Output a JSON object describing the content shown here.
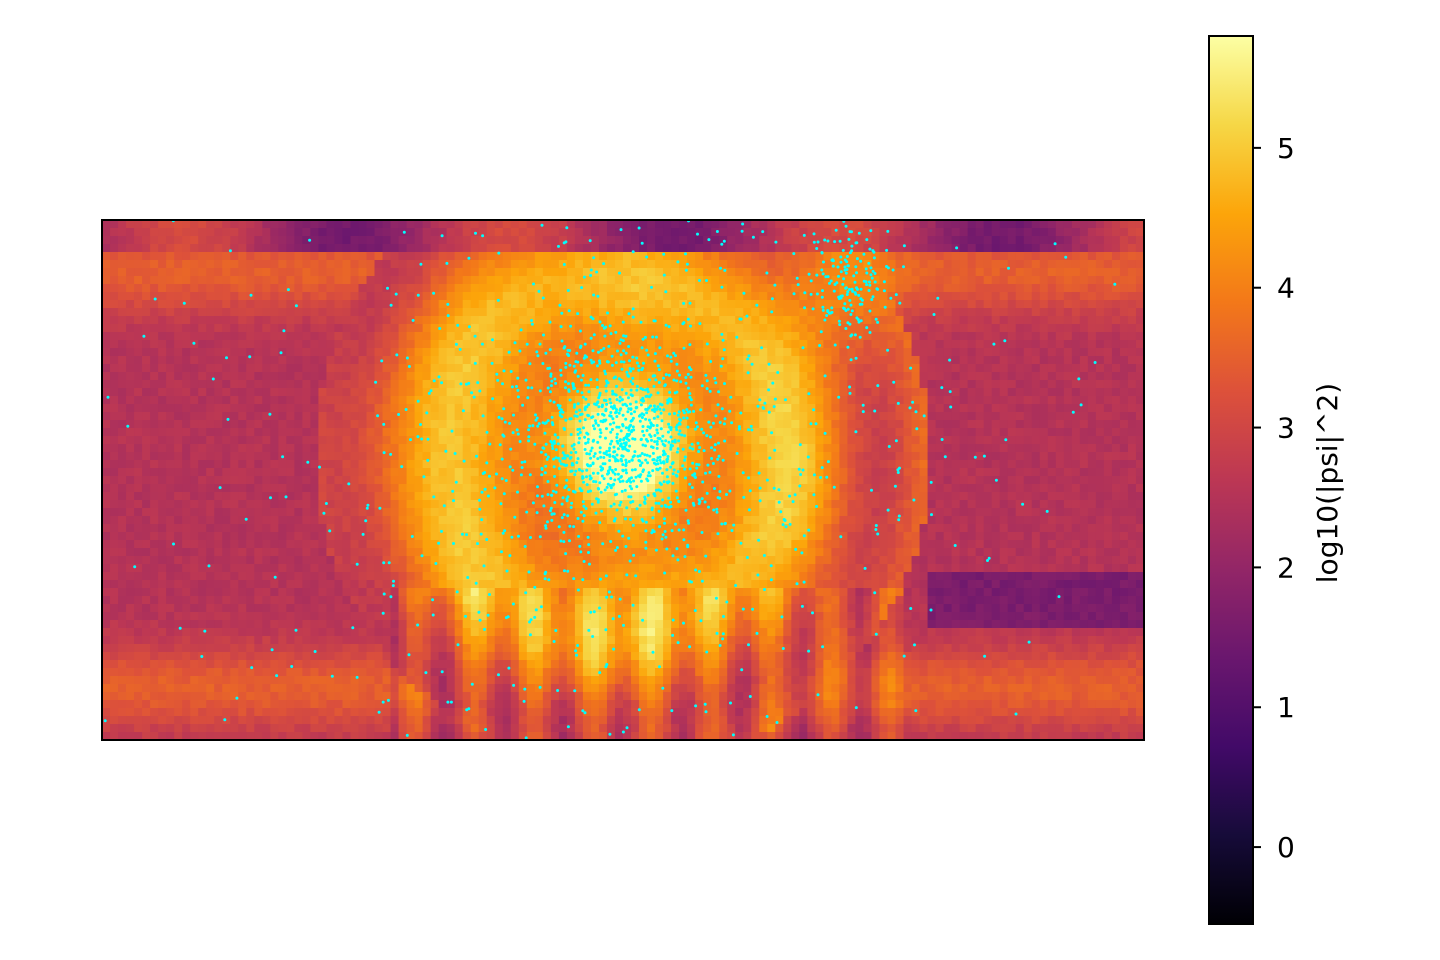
{
  "chart_data": [
    {
      "type": "heatmap",
      "title": "",
      "xlabel": "",
      "ylabel": "",
      "axes_ticks_visible": false,
      "colormap": "inferno",
      "value_range": [
        -0.55,
        5.8
      ],
      "field_description_values": {
        "background_level": 2.5,
        "outer_band_level": 3.5,
        "core_peak_level": 5.0,
        "dark_stripe_level": 1.0
      },
      "overlay_scatter": {
        "color": "#00ffff",
        "approx_point_count": 1900,
        "dense_center": [
          0.5,
          0.42
        ]
      }
    },
    {
      "type": "colorbar",
      "label": "log10(|psi|^2)",
      "range": [
        -0.55,
        5.8
      ],
      "ticks": [
        0,
        1,
        2,
        3,
        4,
        5
      ],
      "tick_labels": [
        "0",
        "1",
        "2",
        "3",
        "4",
        "5"
      ]
    }
  ]
}
